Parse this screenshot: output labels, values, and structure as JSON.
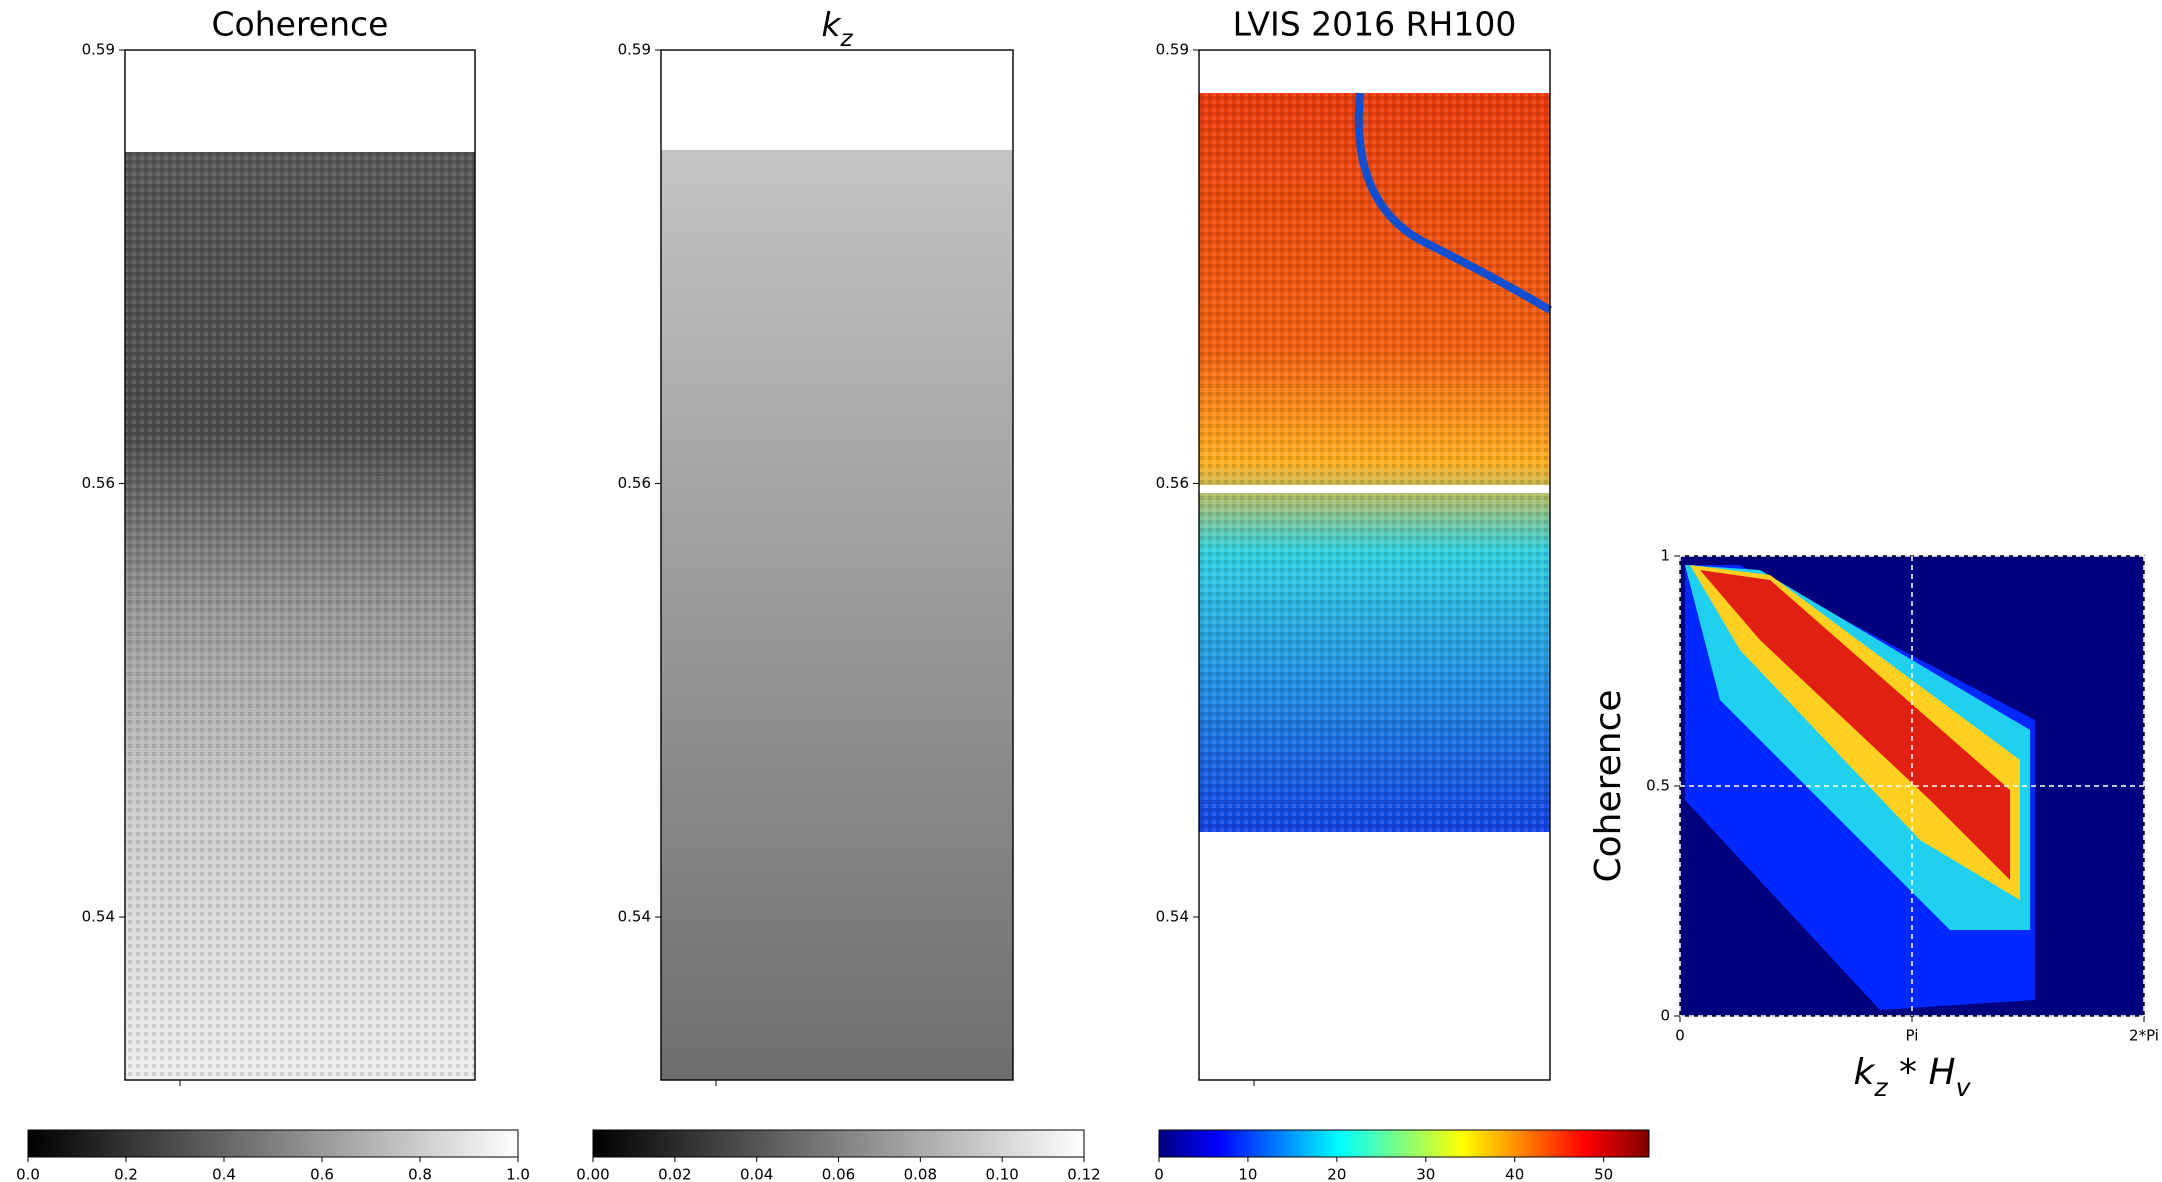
{
  "chart_data": [
    {
      "type": "image",
      "title": "Coherence",
      "colormap": "gray",
      "ylim": [
        0.5306,
        0.59
      ],
      "yticks": [
        0.59,
        {
          "value": 0.565,
          "label": "0.56"
        },
        0.54
      ],
      "clim": [
        0,
        1
      ],
      "cticks": [
        {
          "value": 0,
          "label": "0.0"
        },
        0.2,
        0.4,
        0.6,
        0.8,
        {
          "value": 1,
          "label": "1.0"
        }
      ]
    },
    {
      "type": "image",
      "title": "k_z",
      "colormap": "gray",
      "ylim": [
        0.5306,
        0.59
      ],
      "yticks": [
        0.59,
        {
          "value": 0.565,
          "label": "0.56"
        },
        0.54
      ],
      "clim": [
        0,
        0.12
      ],
      "cticks": [
        {
          "value": 0,
          "label": "0.00"
        },
        0.02,
        0.04,
        0.06,
        0.08,
        {
          "value": 0.1,
          "label": "0.10"
        },
        0.12
      ]
    },
    {
      "type": "image",
      "title": "LVIS 2016 RH100",
      "colormap": "jet",
      "ylim": [
        0.5306,
        0.59
      ],
      "yticks": [
        0.59,
        {
          "value": 0.565,
          "label": "0.56"
        },
        0.54
      ],
      "clim": [
        0,
        55.1
      ],
      "cticks": [
        0,
        10,
        20,
        30,
        40,
        50
      ]
    },
    {
      "type": "heatmap",
      "colormap": "jet",
      "xlabel": "k_z * H_v",
      "ylabel": "Coherence",
      "xlim": [
        0,
        6.2832
      ],
      "xticks": [
        0,
        {
          "value": 3.1416,
          "label": "Pi"
        },
        {
          "value": 6.2832,
          "label": "2*Pi"
        }
      ],
      "ylim": [
        0,
        1
      ],
      "yticks": [
        0,
        0.5,
        1
      ],
      "grid": true
    }
  ]
}
